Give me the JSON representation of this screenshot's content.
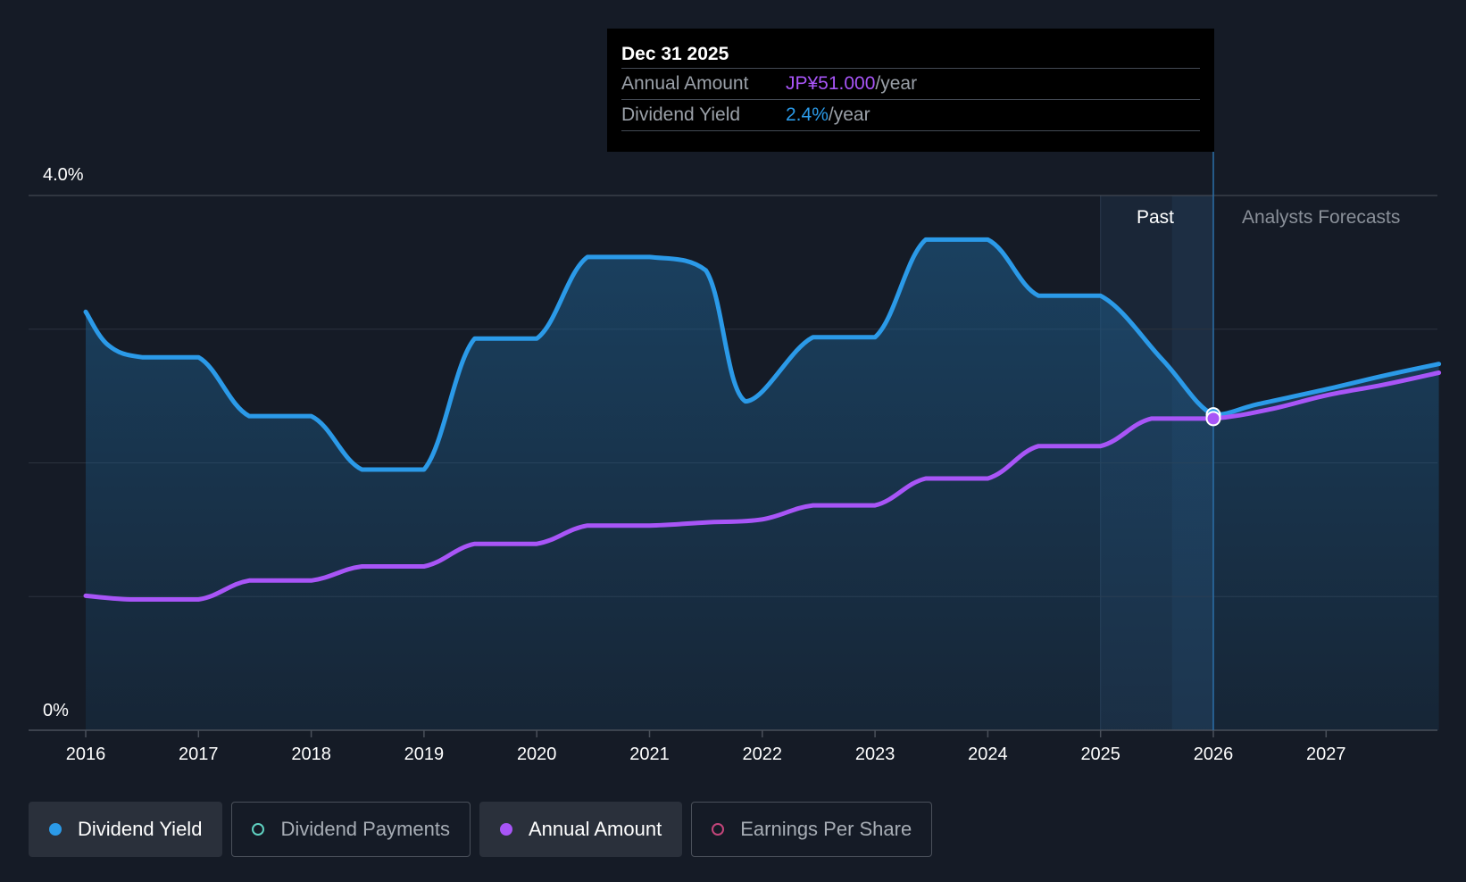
{
  "chart_data": {
    "type": "line",
    "x_ticks": [
      "2016",
      "2017",
      "2018",
      "2019",
      "2020",
      "2021",
      "2022",
      "2023",
      "2024",
      "2025",
      "2026",
      "2027"
    ],
    "y_tick_labels": [
      "4.0%",
      "0%"
    ],
    "ylim": [
      0,
      4.0
    ],
    "xlim": [
      2016,
      2028
    ],
    "grid": true,
    "series": [
      {
        "name": "Dividend Yield",
        "unit": "%",
        "color": "#2b9ae8",
        "points": [
          [
            2016.0,
            3.13
          ],
          [
            2016.2,
            2.88
          ],
          [
            2016.5,
            2.79
          ],
          [
            2017.0,
            2.79
          ],
          [
            2017.45,
            2.35
          ],
          [
            2018.0,
            2.35
          ],
          [
            2018.45,
            1.95
          ],
          [
            2019.0,
            1.95
          ],
          [
            2019.45,
            2.93
          ],
          [
            2020.0,
            2.93
          ],
          [
            2020.45,
            3.54
          ],
          [
            2021.0,
            3.54
          ],
          [
            2021.5,
            3.44
          ],
          [
            2021.85,
            2.46
          ],
          [
            2022.45,
            2.94
          ],
          [
            2023.0,
            2.94
          ],
          [
            2023.45,
            3.67
          ],
          [
            2024.0,
            3.67
          ],
          [
            2024.45,
            3.25
          ],
          [
            2025.0,
            3.25
          ],
          [
            2025.55,
            2.77
          ],
          [
            2026.0,
            2.36
          ],
          [
            2026.4,
            2.44
          ],
          [
            2027.0,
            2.55
          ],
          [
            2027.5,
            2.65
          ],
          [
            2028.0,
            2.74
          ]
        ]
      },
      {
        "name": "Annual Amount",
        "unit": "JP¥",
        "color": "#a855f7",
        "points": [
          [
            2016.0,
            22.0
          ],
          [
            2016.4,
            21.4
          ],
          [
            2017.0,
            21.4
          ],
          [
            2017.45,
            24.5
          ],
          [
            2018.0,
            24.5
          ],
          [
            2018.45,
            26.8
          ],
          [
            2019.0,
            26.8
          ],
          [
            2019.45,
            30.5
          ],
          [
            2020.0,
            30.5
          ],
          [
            2020.45,
            33.5
          ],
          [
            2021.0,
            33.5
          ],
          [
            2021.5,
            34.0
          ],
          [
            2022.0,
            34.5
          ],
          [
            2022.45,
            36.8
          ],
          [
            2023.0,
            36.8
          ],
          [
            2023.45,
            41.2
          ],
          [
            2024.0,
            41.2
          ],
          [
            2024.45,
            46.5
          ],
          [
            2025.0,
            46.5
          ],
          [
            2025.45,
            51.0
          ],
          [
            2026.0,
            51.0
          ],
          [
            2026.5,
            52.5
          ],
          [
            2027.0,
            54.8
          ],
          [
            2027.5,
            56.5
          ],
          [
            2028.0,
            58.5
          ]
        ]
      }
    ],
    "annotations": {
      "past_label": "Past",
      "forecast_label": "Analysts Forecasts",
      "past_band_start": 2025.0,
      "past_band_end": 2026.0,
      "cursor_x": 2026.0
    },
    "tooltip": {
      "date": "Dec 31 2025",
      "rows": [
        {
          "label": "Annual Amount",
          "value": "JP¥51.000",
          "unit": "/year",
          "color": "#a855f7"
        },
        {
          "label": "Dividend Yield",
          "value": "2.4%",
          "unit": "/year",
          "color": "#2b9ae8"
        }
      ]
    }
  },
  "legend": [
    {
      "label": "Dividend Yield",
      "color": "#2b9ae8",
      "filled": true,
      "active": true
    },
    {
      "label": "Dividend Payments",
      "color": "#5fd0c0",
      "filled": false,
      "active": false
    },
    {
      "label": "Annual Amount",
      "color": "#a855f7",
      "filled": true,
      "active": true
    },
    {
      "label": "Earnings Per Share",
      "color": "#c2457a",
      "filled": false,
      "active": false
    }
  ]
}
